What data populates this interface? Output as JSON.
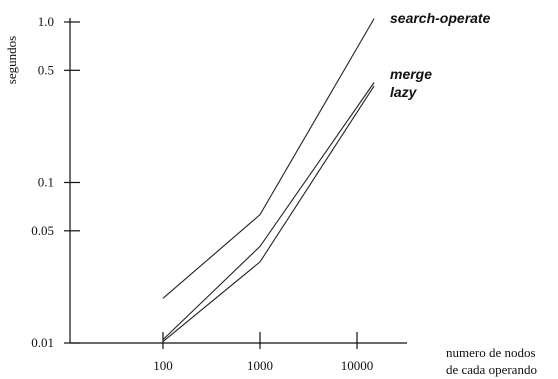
{
  "chart_data": {
    "type": "line",
    "title": "",
    "ylabel": "segundos",
    "xlabel": [
      "numero de nodos",
      "de cada operando"
    ],
    "x_scale": "log",
    "y_scale": "log",
    "xlim": [
      50,
      30000
    ],
    "ylim": [
      0.01,
      1.3
    ],
    "x_ticks": [
      100,
      1000,
      10000
    ],
    "x_tick_labels": [
      "100",
      "1000",
      "10000"
    ],
    "y_ticks": [
      0.01,
      0.05,
      0.1,
      0.5,
      1.0
    ],
    "y_tick_labels": [
      "0.01",
      "0.05",
      "0.1",
      "0.5",
      "1.0"
    ],
    "grid": false,
    "legend": "none",
    "x": [
      100,
      1000,
      15000
    ],
    "series": [
      {
        "name": "search-operate",
        "values": [
          0.019,
          0.063,
          1.05
        ]
      },
      {
        "name": "merge",
        "values": [
          0.0105,
          0.04,
          0.42
        ]
      },
      {
        "name": "lazy",
        "values": [
          0.0102,
          0.032,
          0.4
        ]
      }
    ]
  }
}
